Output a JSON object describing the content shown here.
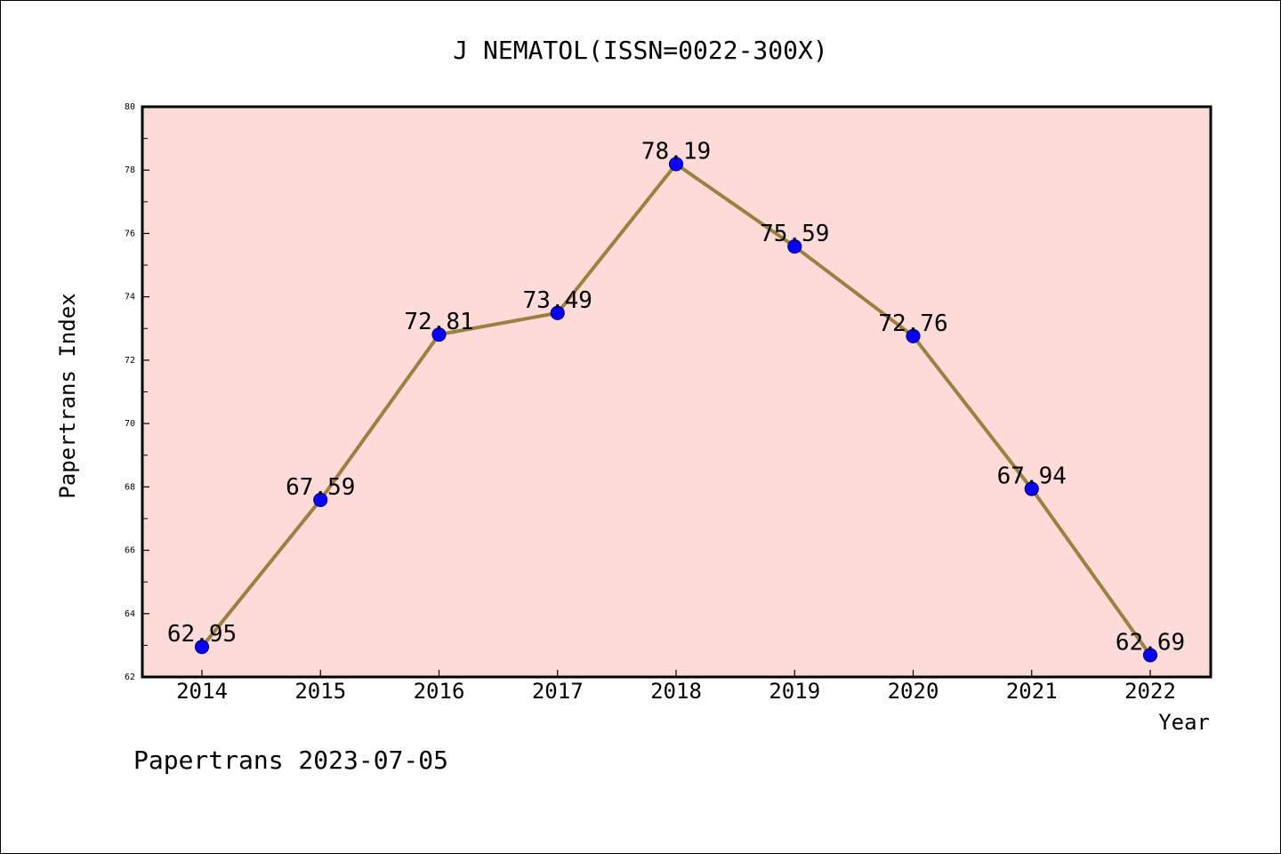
{
  "footer": {
    "text": "Papertrans 2023-07-05"
  },
  "colors": {
    "plot_background": "#fddbd8",
    "line": "#9b8040",
    "marker_fill": "#0a00f5",
    "marker_edge": "#00008b",
    "frame": "#000000"
  },
  "chart_data": {
    "type": "line",
    "title": "J NEMATOL(ISSN=0022-300X)",
    "xlabel": "Year",
    "ylabel": "Papertrans Index",
    "categories": [
      "2014",
      "2015",
      "2016",
      "2017",
      "2018",
      "2019",
      "2020",
      "2021",
      "2022"
    ],
    "values": [
      62.95,
      67.59,
      72.81,
      73.49,
      78.19,
      75.59,
      72.76,
      67.94,
      62.69
    ],
    "value_labels": [
      "62.95",
      "67.59",
      "72.81",
      "73.49",
      "78.19",
      "75.59",
      "72.76",
      "67.94",
      "62.69"
    ],
    "ylim": [
      62,
      80
    ],
    "yticks": [
      "62",
      "64",
      "66",
      "68",
      "70",
      "72",
      "74",
      "76",
      "78",
      "80"
    ],
    "grid": false,
    "legend": "none"
  }
}
